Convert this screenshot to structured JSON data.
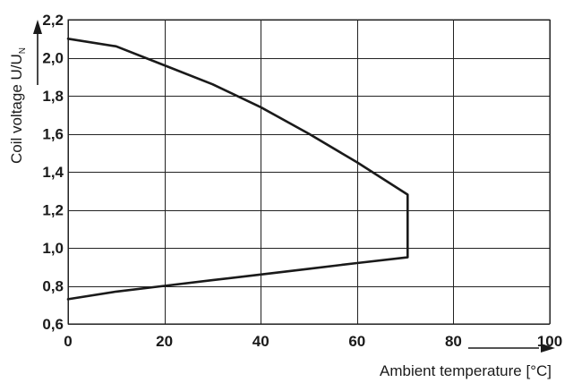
{
  "chart_data": {
    "type": "line",
    "title": "",
    "xlabel": "Ambient temperature [°C]",
    "ylabel_main": "Coil voltage U/U",
    "ylabel_subscript": "N",
    "xlim": [
      0,
      100
    ],
    "ylim": [
      0.6,
      2.2
    ],
    "x_ticks": [
      0,
      20,
      40,
      60,
      80,
      100
    ],
    "x_tick_labels": [
      "0",
      "20",
      "40",
      "60",
      "80",
      "100"
    ],
    "y_ticks": [
      0.6,
      0.8,
      1.0,
      1.2,
      1.4,
      1.6,
      1.8,
      2.0,
      2.2
    ],
    "y_tick_labels": [
      "0,6",
      "0,8",
      "1,0",
      "1,2",
      "1,4",
      "1,6",
      "1,8",
      "2,0",
      "2,2"
    ],
    "grid": true,
    "series": [
      {
        "values": [
          [
            0,
            2.1
          ],
          [
            10,
            2.06
          ],
          [
            20,
            1.96
          ],
          [
            30,
            1.86
          ],
          [
            40,
            1.74
          ],
          [
            50,
            1.6
          ],
          [
            60,
            1.45
          ],
          [
            70.5,
            1.28
          ],
          [
            70.5,
            0.95
          ],
          [
            60,
            0.92
          ],
          [
            50,
            0.89
          ],
          [
            40,
            0.86
          ],
          [
            30,
            0.83
          ],
          [
            20,
            0.8
          ],
          [
            10,
            0.77
          ],
          [
            0,
            0.73
          ]
        ]
      }
    ]
  }
}
